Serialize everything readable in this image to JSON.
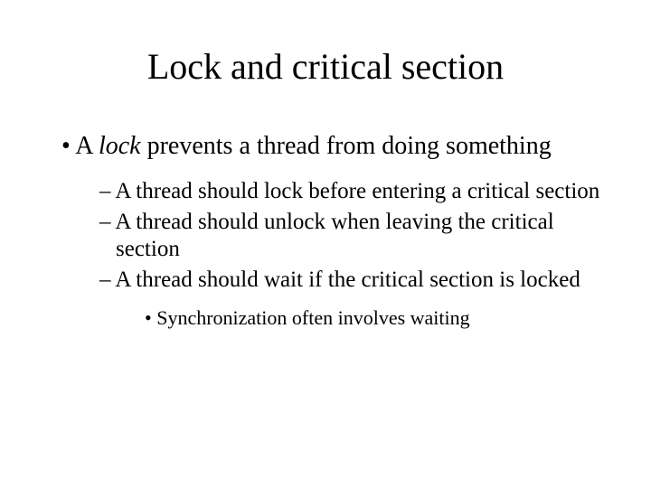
{
  "slide": {
    "title": "Lock and  critical section",
    "background_color": "#ffffff",
    "text_color": "#000000",
    "font_family": "Times New Roman",
    "title_fontsize": 40,
    "bullets": {
      "level1": {
        "fontsize": 28,
        "marker": "•",
        "items": [
          {
            "prefix": "A ",
            "emphasis": "lock",
            "suffix": " prevents a thread from doing something"
          }
        ]
      },
      "level2": {
        "fontsize": 25,
        "marker": "–",
        "items": [
          "A thread should lock before entering a critical section",
          "A thread should unlock when leaving the critical section",
          "A thread should wait if the critical section is locked"
        ]
      },
      "level3": {
        "fontsize": 22,
        "marker": "•",
        "items": [
          "Synchronization often involves waiting"
        ]
      }
    }
  }
}
